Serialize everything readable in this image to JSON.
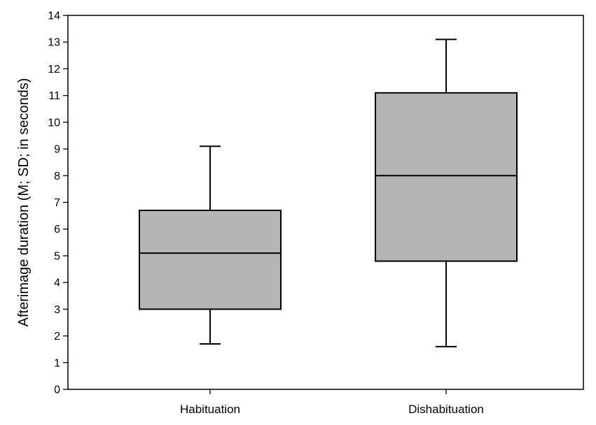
{
  "chart_data": {
    "type": "box",
    "title": "",
    "xlabel": "",
    "ylabel": "Afterimage duration (M; SD; in seconds)",
    "ylim": [
      0,
      14
    ],
    "yticks": [
      0,
      1,
      2,
      3,
      4,
      5,
      6,
      7,
      8,
      9,
      10,
      11,
      12,
      13,
      14
    ],
    "grid": false,
    "categories": [
      "Habituation",
      "Dishabituation"
    ],
    "boxes": [
      {
        "category": "Habituation",
        "whisker_low": 1.7,
        "q1": 3.0,
        "median": 5.1,
        "q3": 6.7,
        "whisker_high": 9.1
      },
      {
        "category": "Dishabituation",
        "whisker_low": 1.6,
        "q1": 4.8,
        "median": 8.0,
        "q3": 11.1,
        "whisker_high": 13.1
      }
    ],
    "colors": {
      "box_fill": "#b4b4b4",
      "stroke": "#000000"
    }
  }
}
